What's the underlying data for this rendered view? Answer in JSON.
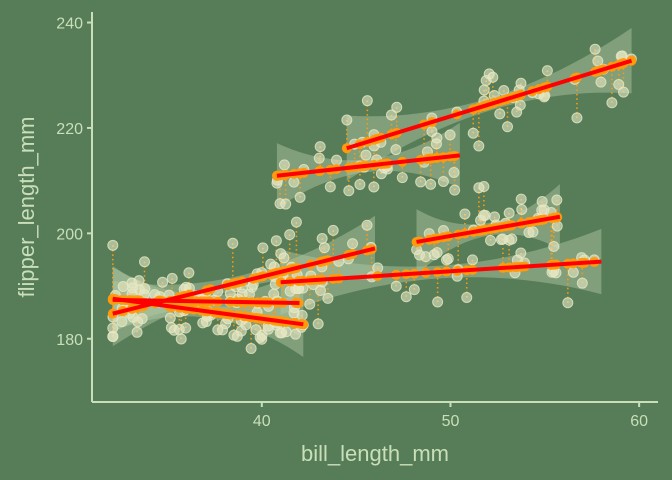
{
  "chart_data": {
    "type": "scatter",
    "title": "",
    "xlabel": "bill_length_mm",
    "ylabel": "flipper_length_mm",
    "xlim": [
      31.0,
      61.0
    ],
    "ylim": [
      168.0,
      242.0
    ],
    "x_ticks": [
      40,
      50,
      60
    ],
    "y_ticks": [
      180,
      200,
      220,
      240
    ],
    "grid": false,
    "colors": {
      "background": "#567d57",
      "axis": "#c9dfb9",
      "points": "#e6e8c4",
      "fitted": "#ff9a0c",
      "regression": "#ff0000",
      "band": "#b3c9a6"
    },
    "groups": [
      {
        "xrange": [
          32.1,
          42.2
        ],
        "slope": -0.48,
        "intercept": 203.0,
        "n": 50,
        "seed": 11
      },
      {
        "xrange": [
          32.1,
          46.0
        ],
        "slope": 0.89,
        "intercept": 156.2,
        "n": 45,
        "seed": 23
      },
      {
        "xrange": [
          32.1,
          42.0
        ],
        "slope": -0.06,
        "intercept": 189.3,
        "n": 40,
        "seed": 37
      },
      {
        "xrange": [
          41.0,
          58.0
        ],
        "slope": 0.23,
        "intercept": 181.3,
        "n": 35,
        "seed": 41
      },
      {
        "xrange": [
          40.8,
          50.5
        ],
        "slope": 0.4,
        "intercept": 194.6,
        "n": 35,
        "seed": 53
      },
      {
        "xrange": [
          44.5,
          59.6
        ],
        "slope": 1.1,
        "intercept": 167.2,
        "n": 45,
        "seed": 67
      },
      {
        "xrange": [
          48.2,
          55.8
        ],
        "slope": 0.63,
        "intercept": 168.0,
        "n": 35,
        "seed": 79
      }
    ]
  }
}
